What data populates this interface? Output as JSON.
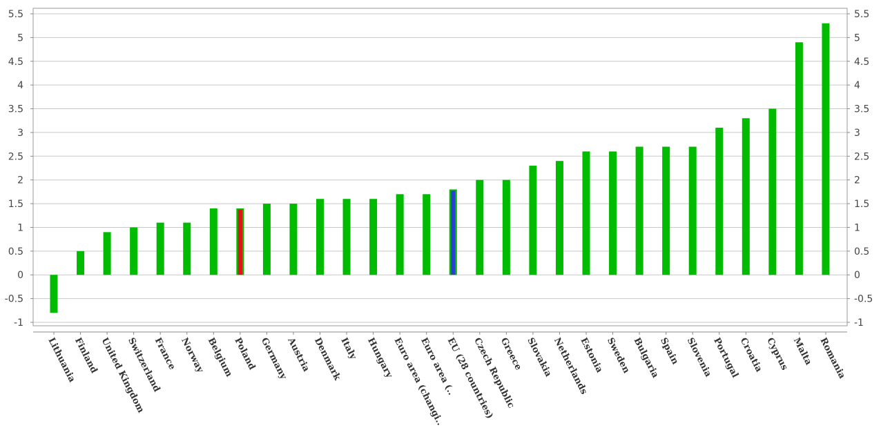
{
  "chart_data": {
    "type": "bar",
    "categories": [
      "Lithuania",
      "Finland",
      "United Kingdom",
      "Switzerland",
      "France",
      "Norway",
      "Belgium",
      "Poland",
      "Germany",
      "Austria",
      "Denmark",
      "Italy",
      "Hungary",
      "Euro area (changi..",
      "Euro area (..",
      "EU (28 countries)",
      "Czech Republic",
      "Greece",
      "Slovakia",
      "Netherlands",
      "Estonia",
      "Sweden",
      "Bulgaria",
      "Spain",
      "Slovenia",
      "Portugal",
      "Croatia",
      "Cyprus",
      "Malta",
      "Romania"
    ],
    "values": [
      -0.8,
      0.5,
      0.9,
      1.0,
      1.1,
      1.1,
      1.4,
      1.4,
      1.5,
      1.5,
      1.6,
      1.6,
      1.6,
      1.7,
      1.7,
      1.8,
      2.0,
      2.0,
      2.3,
      2.4,
      2.6,
      2.6,
      2.7,
      2.7,
      2.7,
      3.1,
      3.3,
      3.5,
      4.9,
      5.3
    ],
    "highlights": {
      "Poland": "#e8101a",
      "EU (28 countries)": "#2b3fd1"
    },
    "bar_color": "#00bb00",
    "ylim": [
      -1,
      5.5
    ],
    "yticks": [
      -1,
      -0.5,
      0,
      0.5,
      1,
      1.5,
      2,
      2.5,
      3,
      3.5,
      4,
      4.5,
      5,
      5.5
    ],
    "ytick_labels": [
      "-1",
      "-0.5",
      "0",
      "0.5",
      "1",
      "1.5",
      "2",
      "2.5",
      "3",
      "3.5",
      "4",
      "4.5",
      "5",
      "5.5"
    ],
    "grid": true,
    "title": "",
    "xlabel": "",
    "ylabel": ""
  }
}
